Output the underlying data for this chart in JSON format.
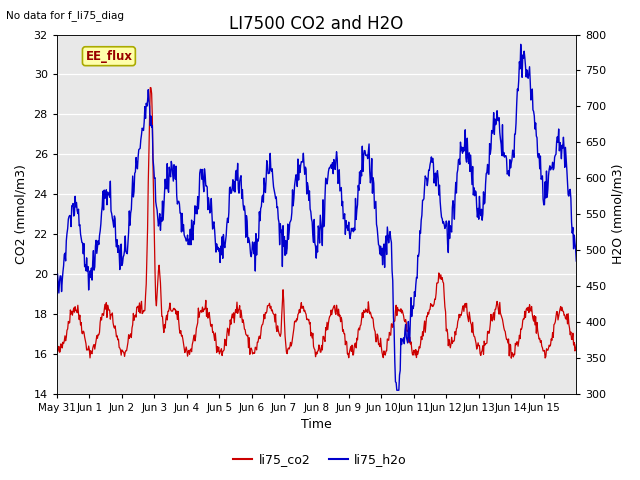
{
  "title": "LI7500 CO2 and H2O",
  "top_left_text": "No data for f_li75_diag",
  "xlabel": "Time",
  "ylabel_left": "CO2 (mmol/m3)",
  "ylabel_right": "H2O (mmol/m3)",
  "ylim_left": [
    14,
    32
  ],
  "ylim_right": [
    300,
    800
  ],
  "yticks_left": [
    14,
    16,
    18,
    20,
    22,
    24,
    26,
    28,
    30,
    32
  ],
  "yticks_right": [
    300,
    350,
    400,
    450,
    500,
    550,
    600,
    650,
    700,
    750,
    800
  ],
  "xtick_labels": [
    "May 31",
    "Jun 1",
    "Jun 2",
    "Jun 3",
    "Jun 4",
    "Jun 5",
    "Jun 6",
    "Jun 7",
    "Jun 8",
    "Jun 9",
    "Jun 10",
    "Jun 11",
    "Jun 12",
    "Jun 13",
    "Jun 14",
    "Jun 15"
  ],
  "color_co2": "#cc0000",
  "color_h2o": "#0000cc",
  "legend_label_co2": "li75_co2",
  "legend_label_h2o": "li75_h2o",
  "annotation_text": "EE_flux",
  "annotation_box_color": "#ffffaa",
  "annotation_box_edge": "#aaaa00",
  "background_color": "#ffffff",
  "plot_bg_color": "#e8e8e8",
  "grid_color": "#ffffff",
  "title_fontsize": 12,
  "axis_fontsize": 9,
  "tick_fontsize": 8
}
